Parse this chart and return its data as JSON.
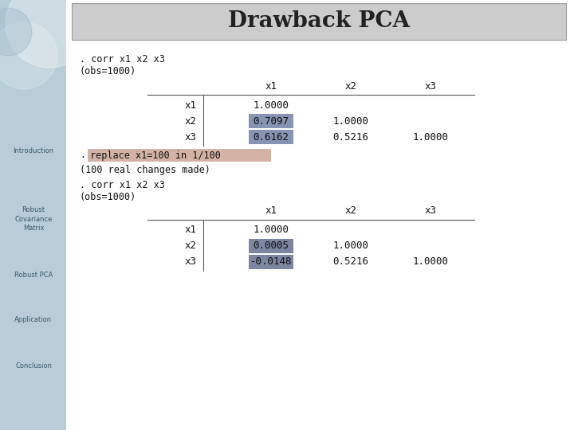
{
  "title": "Drawback PCA",
  "title_bg": "#cccccc",
  "sidebar_bg": "#b8cdd8",
  "main_bg": "#ffffff",
  "sidebar_labels": [
    "Introduction",
    "Robust\nCovariance\nMatrix",
    "Robust PCA",
    "Application",
    "Conclusion"
  ],
  "code_font": "monospace",
  "table1_rows": [
    [
      "x1",
      "1.0000",
      "",
      ""
    ],
    [
      "x2",
      "0.7097",
      "1.0000",
      ""
    ],
    [
      "x3",
      "0.6162",
      "0.5216",
      "1.0000"
    ]
  ],
  "highlight1_rows": [
    1,
    2
  ],
  "highlight1_color": "#6878a0",
  "replace_text": "replace x1=100 in 1/100",
  "replace_bg": "#c8a090",
  "table2_rows": [
    [
      "x1",
      "1.0000",
      "",
      ""
    ],
    [
      "x2",
      "0.0005",
      "1.0000",
      ""
    ],
    [
      "x3",
      "-0.0148",
      "0.5216",
      "1.0000"
    ]
  ],
  "highlight2_rows": [
    1,
    2
  ],
  "highlight2_color": "#5a6888"
}
